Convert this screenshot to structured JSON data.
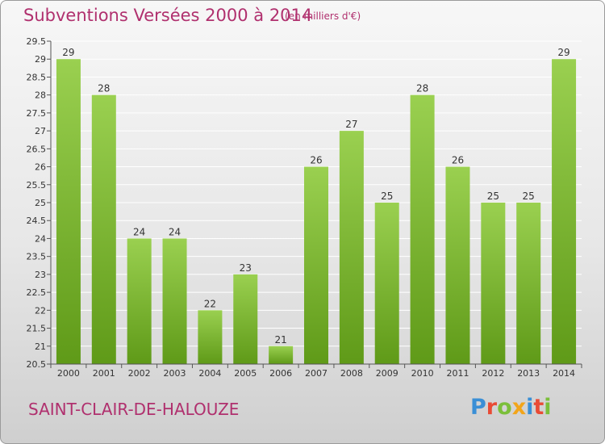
{
  "header": {
    "title": "Subventions Versées 2000 à 2014",
    "subtitle": "(en milliers d'€)"
  },
  "footer": {
    "commune": "SAINT-CLAIR-DE-HALOUZE"
  },
  "logo": {
    "letters": [
      "P",
      "r",
      "o",
      "x",
      "i",
      "t",
      "i"
    ],
    "colors": [
      "#3a8fd6",
      "#e94b35",
      "#7bbf3a",
      "#f2a51a",
      "#3a8fd6",
      "#e94b35",
      "#7bbf3a"
    ]
  },
  "colors": {
    "title": "#b0306e",
    "bar_light": "#9ad050",
    "bar_dark": "#5f9a18",
    "grid": "#ffffff",
    "axis": "#555555"
  },
  "chart_data": {
    "type": "bar",
    "categories": [
      "2000",
      "2001",
      "2002",
      "2003",
      "2004",
      "2005",
      "2006",
      "2007",
      "2008",
      "2009",
      "2010",
      "2011",
      "2012",
      "2013",
      "2014"
    ],
    "values": [
      29,
      28,
      24,
      24,
      22,
      23,
      21,
      26,
      27,
      25,
      28,
      26,
      25,
      25,
      29
    ],
    "value_labels": [
      "29",
      "28",
      "24",
      "24",
      "22",
      "23",
      "21",
      "26",
      "27",
      "25",
      "28",
      "26",
      "25",
      "25",
      "29"
    ],
    "yticks": [
      "20.5",
      "21",
      "21.5",
      "22",
      "22.5",
      "23",
      "23.5",
      "24",
      "24.5",
      "25",
      "25.5",
      "26",
      "26.5",
      "27",
      "27.5",
      "28",
      "28.5",
      "29",
      "29.5"
    ],
    "ylim": [
      20.5,
      29.5
    ],
    "grid": true,
    "legend": "none"
  }
}
